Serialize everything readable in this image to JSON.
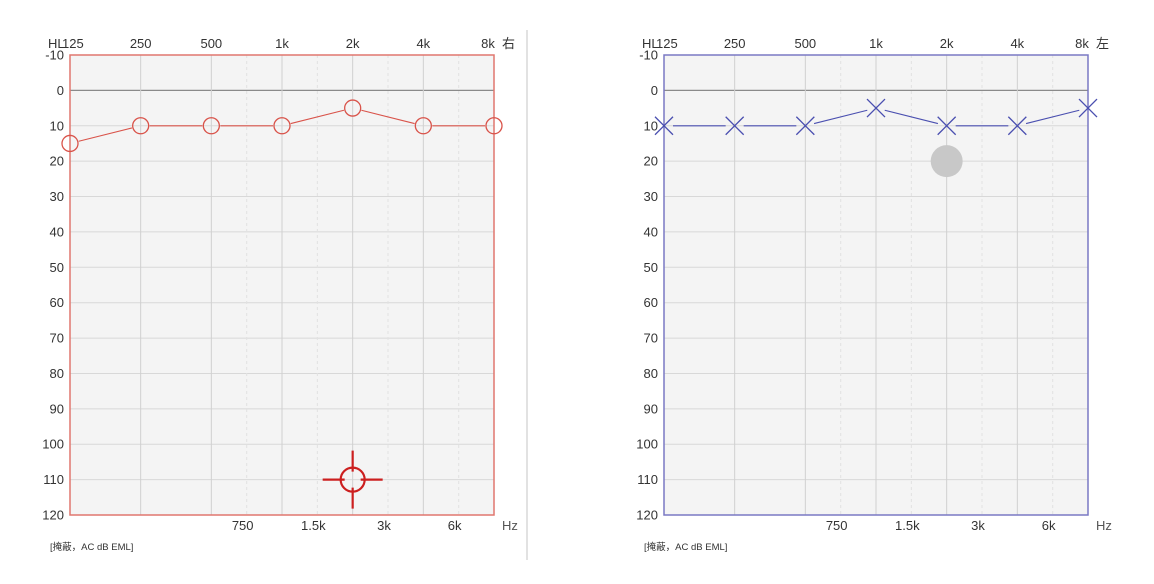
{
  "chart_data": [
    {
      "type": "line",
      "ear_label": "右",
      "hl_label": "HL",
      "unit_label": "Hz",
      "footer": "[掩蔽，AC dB EML]",
      "x_top_ticks": [
        "125",
        "250",
        "500",
        "1k",
        "2k",
        "4k",
        "8k"
      ],
      "x_bottom_ticks": [
        "750",
        "1.5k",
        "3k",
        "6k"
      ],
      "y_ticks": [
        "-10",
        "0",
        "10",
        "20",
        "30",
        "40",
        "50",
        "60",
        "70",
        "80",
        "90",
        "100",
        "110",
        "120"
      ],
      "ylim": [
        -10,
        120
      ],
      "y_inverted": true,
      "grid": true,
      "frame_color": "#e0776f",
      "series": [
        {
          "marker": "circle",
          "color": "#d9534a",
          "x": [
            "125",
            "250",
            "500",
            "1k",
            "2k",
            "4k",
            "8k"
          ],
          "values": [
            15,
            10,
            10,
            10,
            5,
            10,
            10
          ]
        }
      ],
      "cursor": {
        "icon": "crosshair-cursor-icon",
        "x": "2k",
        "y": 110,
        "color": "#cc1f1f"
      }
    },
    {
      "type": "line",
      "ear_label": "左",
      "hl_label": "HL",
      "unit_label": "Hz",
      "footer": "[掩蔽，AC dB EML]",
      "x_top_ticks": [
        "125",
        "250",
        "500",
        "1k",
        "2k",
        "4k",
        "8k"
      ],
      "x_bottom_ticks": [
        "750",
        "1.5k",
        "3k",
        "6k"
      ],
      "y_ticks": [
        "-10",
        "0",
        "10",
        "20",
        "30",
        "40",
        "50",
        "60",
        "70",
        "80",
        "90",
        "100",
        "110",
        "120"
      ],
      "ylim": [
        -10,
        120
      ],
      "y_inverted": true,
      "grid": true,
      "frame_color": "#7a78c4",
      "series": [
        {
          "marker": "cross",
          "color": "#4a4fb0",
          "x": [
            "125",
            "250",
            "500",
            "1k",
            "2k",
            "4k",
            "8k"
          ],
          "values": [
            10,
            10,
            10,
            5,
            10,
            10,
            5
          ]
        }
      ],
      "cursor": {
        "icon": "gray-dot-icon",
        "x": "2k",
        "y": 20,
        "color": "#c8c8c8"
      }
    }
  ]
}
